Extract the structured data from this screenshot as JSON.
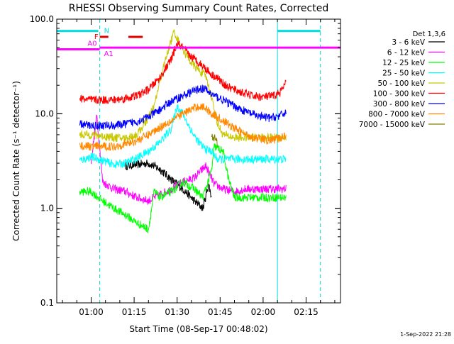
{
  "chart_data": {
    "type": "line",
    "title": "RHESSI Observing Summary Count Rates, Corrected",
    "xlabel": "Start Time (08-Sep-17 00:48:02)",
    "ylabel": "Corrected Count Rate (s⁻¹ detector⁻¹)",
    "y_scale": "log",
    "ylim": [
      0.1,
      100.0
    ],
    "xlim_minutes_of_day": [
      48,
      147
    ],
    "x_ticks": [
      {
        "label": "01:00",
        "t": 60
      },
      {
        "label": "01:15",
        "t": 75
      },
      {
        "label": "01:30",
        "t": 90
      },
      {
        "label": "01:45",
        "t": 105
      },
      {
        "label": "02:00",
        "t": 120
      },
      {
        "label": "02:15",
        "t": 135
      }
    ],
    "y_ticks": [
      {
        "label": "0.1",
        "v": 0.1
      },
      {
        "label": "1.0",
        "v": 1.0
      },
      {
        "label": "10.0",
        "v": 10.0
      },
      {
        "label": "100.0",
        "v": 100.0
      }
    ],
    "legend_title": "Det 1,3,6",
    "legend_placement": "right-outside",
    "series": [
      {
        "name": "3 - 6 keV",
        "color": "#000000",
        "points": [
          [
            72,
            2.8
          ],
          [
            76,
            2.9
          ],
          [
            80,
            3.0
          ],
          [
            84,
            2.6
          ],
          [
            88,
            2.0
          ],
          [
            92,
            1.6
          ],
          [
            96,
            1.2
          ],
          [
            99,
            1.0
          ],
          [
            101,
            1.8
          ],
          [
            102,
            1.3
          ]
        ]
      },
      {
        "name": "6 - 12 keV",
        "color": "#ff00ff",
        "points": [
          [
            60,
            3.2
          ],
          [
            62,
            9.5
          ],
          [
            64,
            1.9
          ],
          [
            68,
            1.6
          ],
          [
            72,
            1.5
          ],
          [
            76,
            1.3
          ],
          [
            80,
            1.2
          ],
          [
            84,
            1.4
          ],
          [
            88,
            1.6
          ],
          [
            92,
            1.9
          ],
          [
            96,
            2.1
          ],
          [
            100,
            2.8
          ],
          [
            103,
            1.8
          ],
          [
            106,
            1.6
          ],
          [
            110,
            1.5
          ],
          [
            114,
            1.6
          ],
          [
            118,
            1.6
          ],
          [
            122,
            1.6
          ],
          [
            126,
            1.6
          ],
          [
            128,
            1.6
          ]
        ]
      },
      {
        "name": "12 - 25 keV",
        "color": "#00ff00",
        "points": [
          [
            56,
            1.5
          ],
          [
            60,
            1.5
          ],
          [
            64,
            1.2
          ],
          [
            68,
            1.0
          ],
          [
            72,
            0.85
          ],
          [
            76,
            0.7
          ],
          [
            80,
            0.6
          ],
          [
            82,
            1.5
          ],
          [
            84,
            1.3
          ],
          [
            88,
            1.5
          ],
          [
            92,
            1.9
          ],
          [
            96,
            1.6
          ],
          [
            99,
            1.3
          ],
          [
            102,
            2.5
          ],
          [
            103,
            4.5
          ],
          [
            106,
            4.0
          ],
          [
            108,
            2.0
          ],
          [
            110,
            1.3
          ],
          [
            114,
            1.3
          ],
          [
            118,
            1.3
          ],
          [
            122,
            1.3
          ],
          [
            126,
            1.3
          ],
          [
            128,
            1.3
          ]
        ]
      },
      {
        "name": "25 - 50 keV",
        "color": "#00ffff",
        "points": [
          [
            56,
            3.2
          ],
          [
            60,
            3.5
          ],
          [
            64,
            3.2
          ],
          [
            68,
            2.9
          ],
          [
            72,
            3.0
          ],
          [
            76,
            3.4
          ],
          [
            80,
            4.0
          ],
          [
            84,
            5.0
          ],
          [
            88,
            7.0
          ],
          [
            90,
            12.0
          ],
          [
            92,
            10.0
          ],
          [
            94,
            7.5
          ],
          [
            96,
            5.8
          ],
          [
            98,
            4.8
          ],
          [
            100,
            4.2
          ],
          [
            102,
            4.0
          ],
          [
            104,
            3.3
          ],
          [
            108,
            3.3
          ],
          [
            112,
            3.3
          ],
          [
            116,
            3.3
          ],
          [
            120,
            3.3
          ],
          [
            124,
            3.3
          ],
          [
            128,
            3.3
          ]
        ]
      },
      {
        "name": "50 - 100 keV",
        "color": "#c8c800",
        "points": [
          [
            56,
            6.0
          ],
          [
            60,
            6.0
          ],
          [
            64,
            5.8
          ],
          [
            68,
            5.6
          ],
          [
            72,
            5.5
          ],
          [
            76,
            6.0
          ],
          [
            80,
            9.0
          ],
          [
            82,
            12.0
          ],
          [
            84,
            22.0
          ],
          [
            86,
            38.0
          ],
          [
            88,
            60.0
          ],
          [
            89,
            75.0
          ],
          [
            90,
            62.0
          ],
          [
            92,
            48.0
          ],
          [
            94,
            38.0
          ],
          [
            96,
            32.0
          ],
          [
            98,
            28.0
          ],
          [
            100,
            25.0
          ],
          [
            102,
            15.0
          ],
          [
            104,
            8.0
          ],
          [
            106,
            6.0
          ],
          [
            110,
            5.6
          ],
          [
            114,
            5.6
          ],
          [
            118,
            5.6
          ],
          [
            122,
            5.6
          ],
          [
            126,
            5.6
          ],
          [
            128,
            5.6
          ]
        ]
      },
      {
        "name": "100 - 300 keV",
        "color": "#ff0000",
        "points": [
          [
            56,
            14.5
          ],
          [
            60,
            14.0
          ],
          [
            64,
            14.0
          ],
          [
            68,
            14.0
          ],
          [
            72,
            14.5
          ],
          [
            76,
            15.5
          ],
          [
            80,
            18.0
          ],
          [
            84,
            24.0
          ],
          [
            88,
            38.0
          ],
          [
            90,
            55.0
          ],
          [
            92,
            50.0
          ],
          [
            94,
            42.0
          ],
          [
            96,
            38.0
          ],
          [
            98,
            34.0
          ],
          [
            100,
            30.0
          ],
          [
            102,
            26.0
          ],
          [
            104,
            24.0
          ],
          [
            106,
            21.0
          ],
          [
            108,
            19.0
          ],
          [
            112,
            17.0
          ],
          [
            116,
            15.5
          ],
          [
            120,
            15.0
          ],
          [
            124,
            15.5
          ],
          [
            126,
            17.0
          ],
          [
            128,
            21.0
          ]
        ]
      },
      {
        "name": "300 - 800 keV",
        "color": "#0000ff",
        "points": [
          [
            56,
            7.8
          ],
          [
            60,
            7.5
          ],
          [
            64,
            7.5
          ],
          [
            68,
            7.5
          ],
          [
            72,
            7.8
          ],
          [
            76,
            8.3
          ],
          [
            80,
            9.2
          ],
          [
            84,
            11.0
          ],
          [
            88,
            13.5
          ],
          [
            92,
            15.5
          ],
          [
            96,
            17.5
          ],
          [
            98,
            18.5
          ],
          [
            100,
            18.0
          ],
          [
            102,
            16.0
          ],
          [
            106,
            14.0
          ],
          [
            110,
            12.0
          ],
          [
            114,
            10.5
          ],
          [
            118,
            9.5
          ],
          [
            122,
            9.0
          ],
          [
            126,
            9.5
          ],
          [
            128,
            10.5
          ]
        ]
      },
      {
        "name": "800 - 7000 keV",
        "color": "#ff8800",
        "points": [
          [
            56,
            4.6
          ],
          [
            60,
            4.5
          ],
          [
            64,
            4.5
          ],
          [
            68,
            4.5
          ],
          [
            72,
            4.8
          ],
          [
            76,
            5.2
          ],
          [
            80,
            6.0
          ],
          [
            84,
            7.2
          ],
          [
            88,
            8.5
          ],
          [
            92,
            10.0
          ],
          [
            96,
            11.5
          ],
          [
            98,
            12.0
          ],
          [
            100,
            11.5
          ],
          [
            102,
            10.0
          ],
          [
            106,
            8.5
          ],
          [
            110,
            7.0
          ],
          [
            114,
            6.0
          ],
          [
            118,
            5.5
          ],
          [
            122,
            5.2
          ],
          [
            126,
            5.5
          ],
          [
            128,
            6.0
          ]
        ]
      },
      {
        "name": "7000 - 15000 keV",
        "color": "#808000",
        "points": [
          [
            102,
            6.0
          ],
          [
            103,
            5.5
          ],
          [
            104,
            5.0
          ]
        ]
      }
    ],
    "status_bars": [
      {
        "label": "N",
        "color": "#00e0e0",
        "y": 75,
        "segments": [
          [
            48,
            62.5
          ],
          [
            125,
            140
          ]
        ]
      },
      {
        "label": "F",
        "color": "#e00000",
        "y": 65,
        "segments": [
          [
            63,
            66
          ],
          [
            73,
            78
          ]
        ]
      },
      {
        "label": "A0",
        "color": "#ff00ff",
        "y": 48,
        "segments": [
          [
            48,
            63
          ]
        ]
      },
      {
        "label": "A1",
        "color": "#ff00ff",
        "y": 50,
        "segments": [
          [
            63,
            147
          ]
        ]
      }
    ],
    "vertical_markers": [
      {
        "t": 48,
        "style": "solid"
      },
      {
        "t": 63,
        "style": "dashed"
      },
      {
        "t": 125,
        "style": "solid"
      },
      {
        "t": 140,
        "style": "dashed"
      }
    ],
    "timestamp": "1-Sep-2022 21:28"
  }
}
